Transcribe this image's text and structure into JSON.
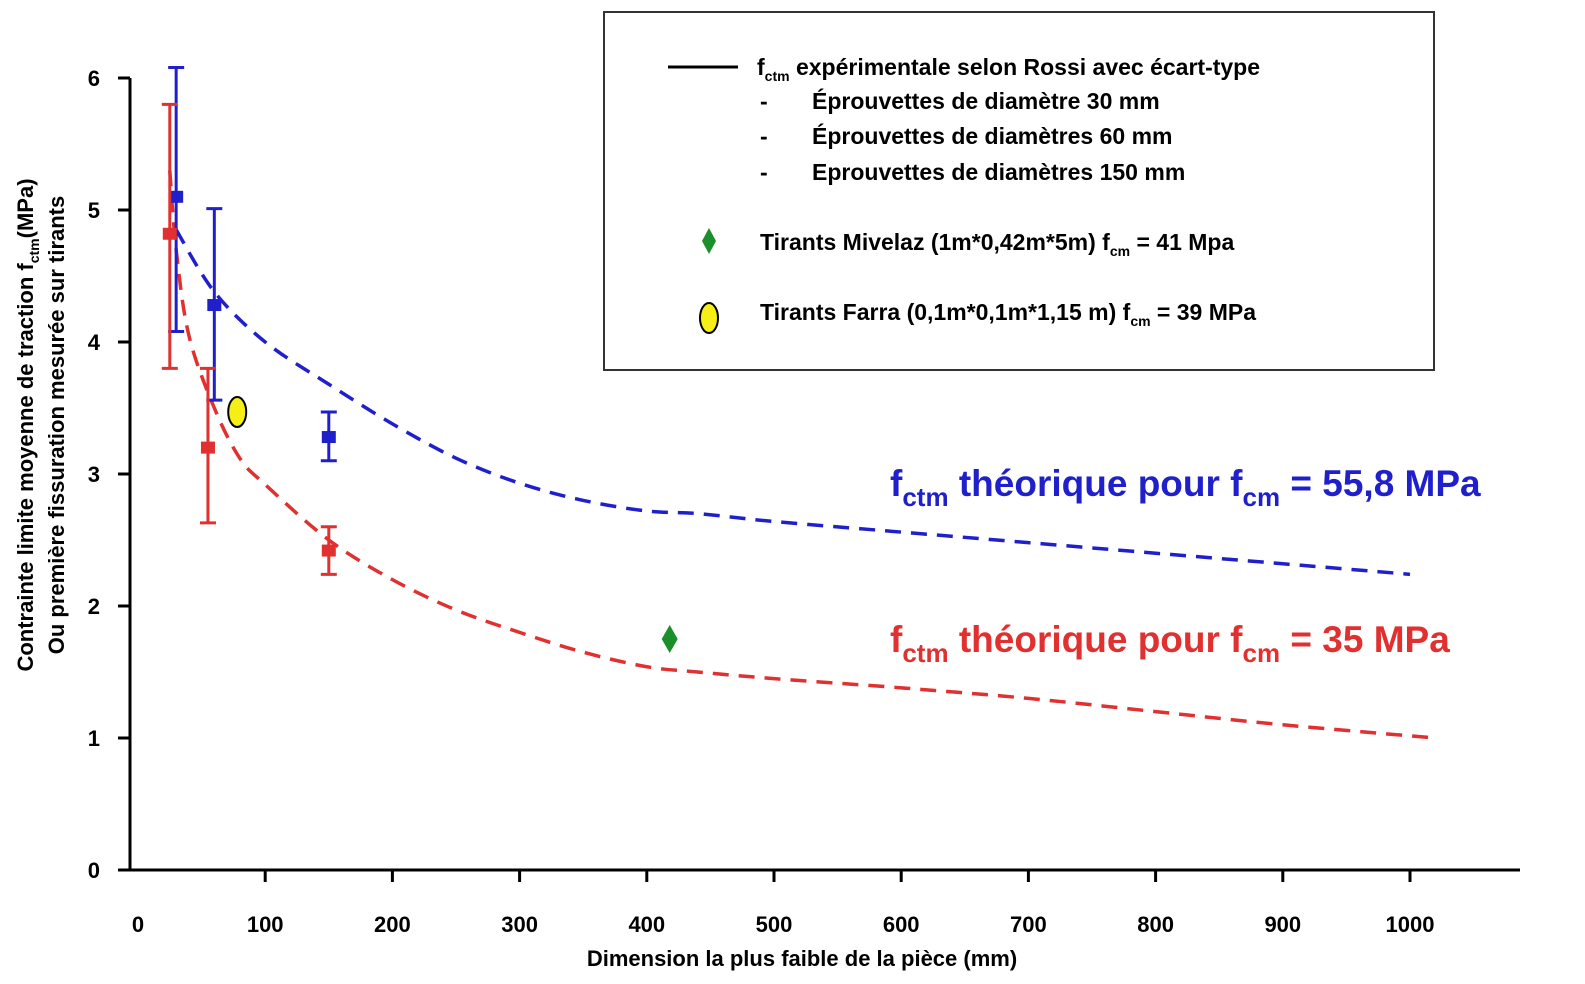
{
  "chart_data": {
    "type": "scatter",
    "xlabel": "Dimension la plus faible de la pièce (mm)",
    "ylabel_line1_main": "Contrainte limite moyenne de traction f",
    "ylabel_line1_sub": "ctm",
    "ylabel_line1_unit": "(MPa)",
    "ylabel_line2": "Ou première fissuration mesurée sur tirants",
    "xlim": [
      -30,
      1080
    ],
    "ylim": [
      0,
      6
    ],
    "x_ticks": [
      0,
      100,
      200,
      300,
      400,
      500,
      600,
      700,
      800,
      900,
      1000
    ],
    "y_ticks": [
      0,
      1,
      2,
      3,
      4,
      5,
      6
    ],
    "grid": false,
    "legend": {
      "placement": "top-right",
      "line_main": "f",
      "line_sub": "ctm",
      "line_rest": " expérimentale selon Rossi avec écart-type",
      "dash": "-",
      "sub_items": [
        "Éprouvettes de diamètre 30 mm",
        "Éprouvettes de diamètres 60 mm",
        "Eprouvettes de diamètres 150 mm"
      ],
      "mivelaz_main": "Tirants Mivelaz (1m*0,42m*5m) f",
      "mivelaz_sub": "cm",
      "mivelaz_rest": " = 41 Mpa",
      "farra_main": "Tirants Farra (0,1m*0,1m*1,15 m) f",
      "farra_sub": "cm",
      "farra_rest": " = 39 MPa"
    },
    "curves": [
      {
        "label_parts": [
          "f",
          "ctm",
          " théorique pour f",
          "cm",
          " = 55,8 MPa"
        ],
        "color": "#1f1fcc",
        "x": [
          30,
          60,
          100,
          150,
          200,
          250,
          300,
          350,
          400,
          440,
          500,
          600,
          700,
          800,
          900,
          1000
        ],
        "y": [
          4.85,
          4.38,
          4.0,
          3.68,
          3.38,
          3.12,
          2.93,
          2.8,
          2.72,
          2.7,
          2.64,
          2.56,
          2.48,
          2.4,
          2.32,
          2.24
        ]
      },
      {
        "label_parts": [
          "f",
          "ctm",
          " théorique pour f",
          "cm",
          " = 35 MPa"
        ],
        "color": "#e03030",
        "x": [
          25,
          30,
          40,
          60,
          80,
          100,
          150,
          200,
          250,
          300,
          350,
          400,
          440,
          500,
          600,
          700,
          800,
          900,
          1020
        ],
        "y": [
          5.3,
          4.7,
          4.05,
          3.5,
          3.12,
          2.92,
          2.5,
          2.2,
          1.97,
          1.8,
          1.65,
          1.54,
          1.5,
          1.45,
          1.38,
          1.3,
          1.2,
          1.1,
          1.0
        ]
      }
    ],
    "error_bar_series": [
      {
        "color": "#1f1fcc",
        "points": [
          {
            "x": 30,
            "y": 5.1,
            "ymin": 4.08,
            "ymax": 6.08
          },
          {
            "x": 60,
            "y": 4.28,
            "ymin": 3.56,
            "ymax": 5.01
          },
          {
            "x": 150,
            "y": 3.28,
            "ymin": 3.1,
            "ymax": 3.47
          }
        ]
      },
      {
        "color": "#e03030",
        "points": [
          {
            "x": 25,
            "y": 4.82,
            "ymin": 3.8,
            "ymax": 5.8
          },
          {
            "x": 55,
            "y": 3.2,
            "ymin": 2.63,
            "ymax": 3.8
          },
          {
            "x": 150,
            "y": 2.42,
            "ymin": 2.24,
            "ymax": 2.6
          }
        ]
      }
    ],
    "markers": [
      {
        "name": "Tirants Mivelaz",
        "shape": "diamond",
        "color": "#1a8f2a",
        "x": 418,
        "y": 1.75
      },
      {
        "name": "Tirants Farra",
        "shape": "ellipse",
        "color": "#f5ef16",
        "x": 78,
        "y": 3.47
      }
    ]
  }
}
